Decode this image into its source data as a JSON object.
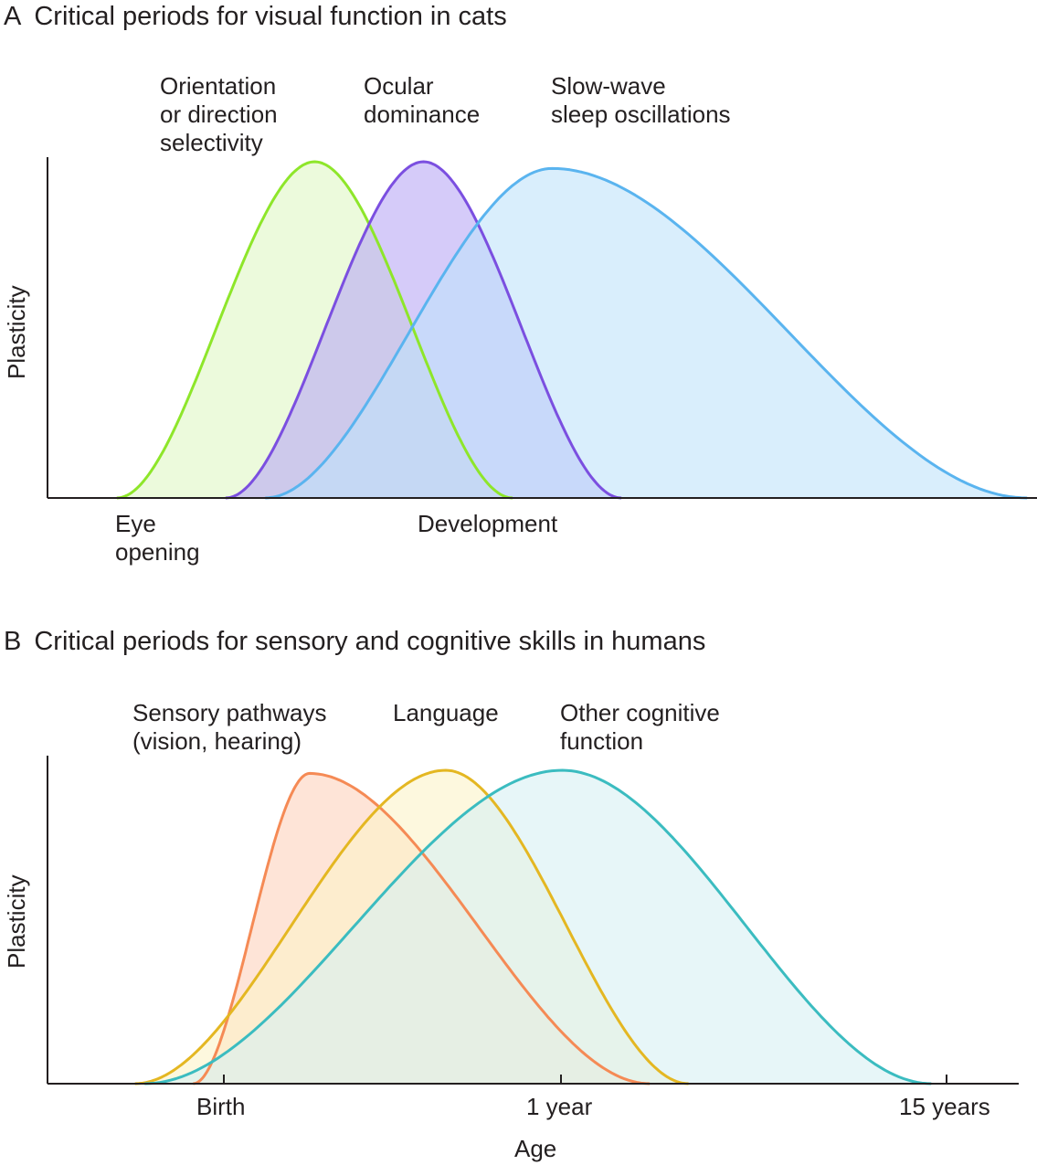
{
  "chart_data": [
    {
      "panel": "A",
      "title": "Critical periods for visual function in cats",
      "type": "area",
      "ylabel": "Plasticity",
      "xlabel": "Development",
      "x_annotation": "Eye\nopening",
      "series": [
        {
          "name": "Orientation\nor direction\nselectivity",
          "color": "#8ee62a",
          "fill": "#e0f7c4",
          "onset": 0.07,
          "peak": 0.27,
          "end": 0.47,
          "height": 1.0
        },
        {
          "name": "Ocular\ndominance",
          "color": "#7b4fe0",
          "fill": "#b9a8f5",
          "onset": 0.18,
          "peak": 0.38,
          "end": 0.58,
          "height": 1.0
        },
        {
          "name": "Slow-wave\nsleep oscillations",
          "color": "#5ab4ef",
          "fill": "#bfe2fa",
          "onset": 0.22,
          "peak": 0.51,
          "end": 0.99,
          "height": 0.98
        }
      ]
    },
    {
      "panel": "B",
      "title": "Critical periods for sensory and cognitive skills in humans",
      "type": "area",
      "ylabel": "Plasticity",
      "xlabel": "Age",
      "x_ticks": [
        "Birth",
        "1 year",
        "15 years"
      ],
      "series": [
        {
          "name": "Sensory pathways\n(vision, hearing)",
          "color": "#f58a55",
          "fill": "#fdd2bd",
          "onset": 0.15,
          "peak": 0.27,
          "end": 0.62,
          "height": 0.99
        },
        {
          "name": "Language",
          "color": "#e4b722",
          "fill": "#fbf3c8",
          "onset": 0.09,
          "peak": 0.41,
          "end": 0.66,
          "height": 1.0
        },
        {
          "name": "Other cognitive\nfunction",
          "color": "#3bbcc0",
          "fill": "#d7f0f3",
          "onset": 0.1,
          "peak": 0.53,
          "end": 0.91,
          "height": 1.0
        }
      ]
    }
  ]
}
